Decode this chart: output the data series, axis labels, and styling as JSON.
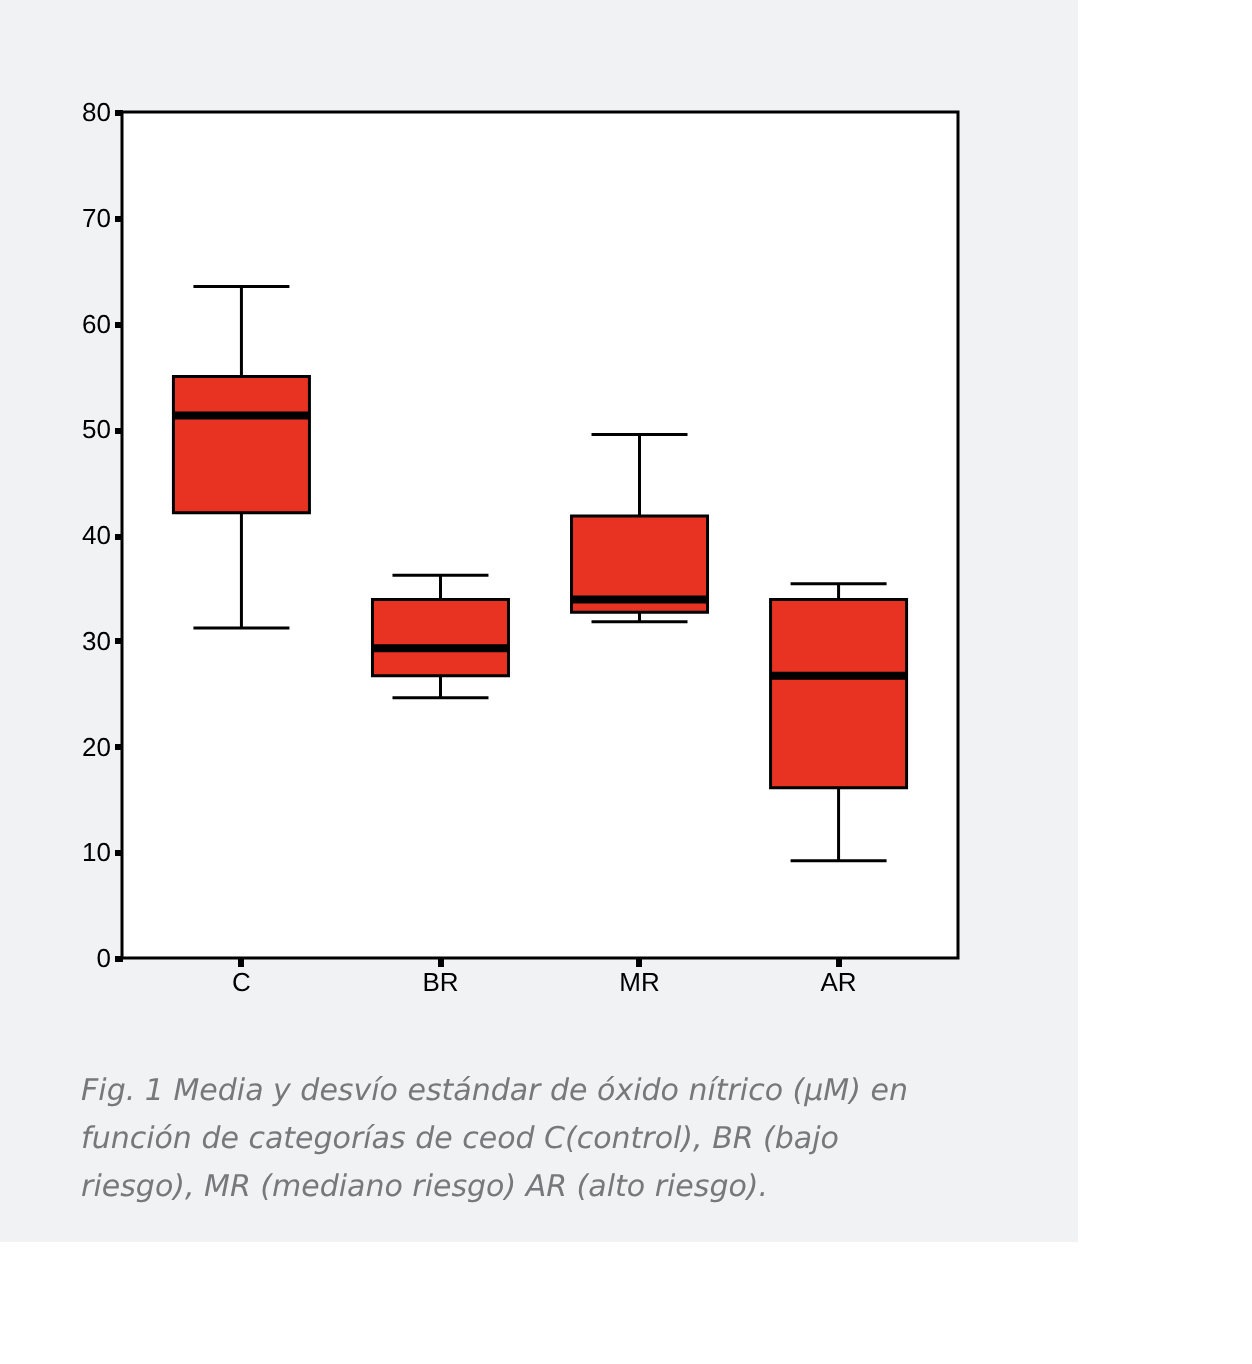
{
  "chart_data": {
    "type": "box",
    "categories": [
      "C",
      "BR",
      "MR",
      "AR"
    ],
    "color": "#e83323",
    "boxes": [
      {
        "low": 31.2,
        "q1": 42.1,
        "median": 51.3,
        "q3": 55.0,
        "high": 63.5
      },
      {
        "low": 24.6,
        "q1": 26.7,
        "median": 29.3,
        "q3": 33.9,
        "high": 36.2
      },
      {
        "low": 31.8,
        "q1": 32.7,
        "median": 33.9,
        "q3": 41.8,
        "high": 49.5
      },
      {
        "low": 9.2,
        "q1": 16.1,
        "median": 26.7,
        "q3": 33.9,
        "high": 35.4
      }
    ],
    "ylim": [
      0,
      80
    ],
    "yticks": [
      0,
      10,
      20,
      30,
      40,
      50,
      60,
      70,
      80
    ],
    "grid": false,
    "annotations": [
      "Fig. 1 Media y desvío estándar de óxido nítrico (μM) en función de categorías de ceod C(control), BR (bajo riesgo), MR (mediano riesgo) AR (alto riesgo)."
    ]
  }
}
